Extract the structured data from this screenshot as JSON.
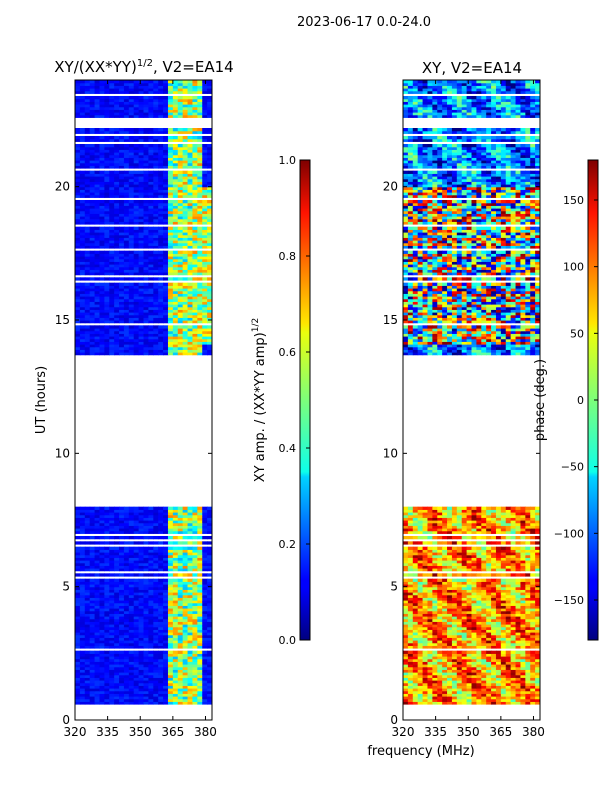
{
  "figure": {
    "suptitle": "2023-06-17 0.0-24.0",
    "shared_xlabel": "frequency (MHz)"
  },
  "chart_data": [
    {
      "type": "heatmap",
      "title": "XY/(XX*YY)^{1/2}, V2=EA14",
      "title_main": "XY/(XX*YY)",
      "title_exp": "1/2",
      "title_tail": ", V2=EA14",
      "xlabel": "frequency (MHz)",
      "ylabel": "UT (hours)",
      "xlim": [
        320,
        383
      ],
      "ylim": [
        0,
        24
      ],
      "xticks": [
        320,
        335,
        350,
        365,
        380
      ],
      "yticks": [
        0,
        5,
        10,
        15,
        20
      ],
      "data_gap_hours": [
        8.1,
        13.7
      ],
      "colorbar": {
        "label": "XY amp. / (XX*YY amp)^{1/2}",
        "label_main": "XY amp. / (XX*YY amp)",
        "label_exp": "1/2",
        "range": [
          0.0,
          1.0
        ],
        "ticks": [
          "0.0",
          "0.2",
          "0.4",
          "0.6",
          "0.8",
          "1.0"
        ],
        "colormap": "jet"
      }
    },
    {
      "type": "heatmap",
      "title": "XY, V2=EA14",
      "xlabel": "frequency (MHz)",
      "ylabel": "",
      "xlim": [
        320,
        383
      ],
      "ylim": [
        0,
        24
      ],
      "xticks": [
        320,
        335,
        350,
        365,
        380
      ],
      "yticks": [
        0,
        5,
        10,
        15,
        20
      ],
      "data_gap_hours": [
        8.1,
        13.7
      ],
      "colorbar": {
        "label": "phase (deg.)",
        "range": [
          -180,
          180
        ],
        "ticks": [
          "-150",
          "-100",
          "-50",
          "0",
          "50",
          "100",
          "150"
        ],
        "colormap": "jet"
      }
    }
  ]
}
